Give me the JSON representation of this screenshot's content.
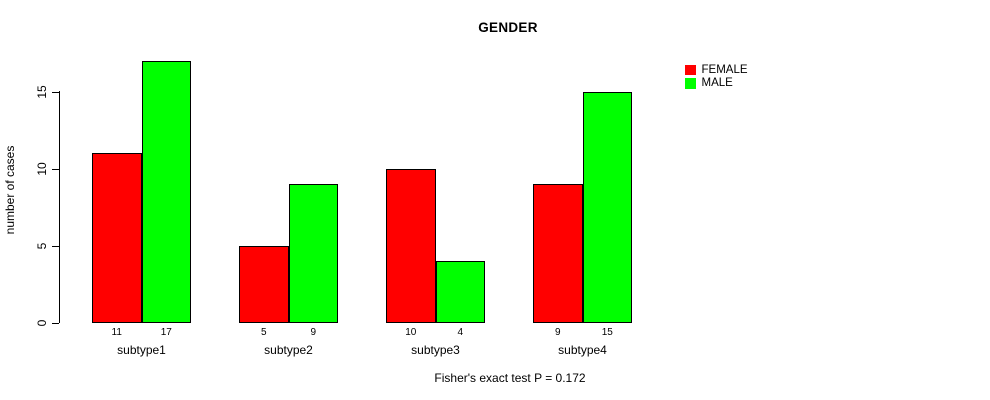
{
  "chart_data": {
    "type": "bar",
    "title": "GENDER",
    "xlabel": "",
    "ylabel": "number of cases",
    "categories": [
      "subtype1",
      "subtype2",
      "subtype3",
      "subtype4"
    ],
    "series": [
      {
        "name": "FEMALE",
        "color": "#ff0000",
        "values": [
          11,
          5,
          10,
          9
        ]
      },
      {
        "name": "MALE",
        "color": "#00ff00",
        "values": [
          17,
          9,
          4,
          15
        ]
      }
    ],
    "yticks": [
      0,
      5,
      10,
      15
    ],
    "ylim": [
      0,
      17
    ],
    "grid": false,
    "bar_value_labels_shown": true,
    "legend_position": "top-right",
    "annotation": "Fisher's exact test P = 0.172"
  }
}
